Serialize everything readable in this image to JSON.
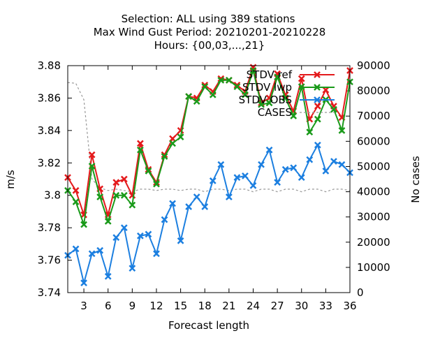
{
  "chart_data": {
    "type": "line",
    "title_lines": [
      "Selection: ALL using   389 stations",
      "Max Wind Gust   Period: 20210201-20210228",
      "Hours: {00,03,...,21}"
    ],
    "xlabel": "Forecast length",
    "ylabel": "m/s",
    "y2label": "No cases",
    "xlim": [
      1,
      36
    ],
    "ylim": [
      3.74,
      3.88
    ],
    "y2lim": [
      0,
      90000
    ],
    "xticks": [
      3,
      6,
      9,
      12,
      15,
      18,
      21,
      24,
      27,
      30,
      33,
      36
    ],
    "yticks": [
      3.74,
      3.76,
      3.78,
      3.8,
      3.82,
      3.84,
      3.86,
      3.88
    ],
    "ytick_labels": [
      "3.74",
      "3.76",
      "3.78",
      "3.8",
      "3.82",
      "3.84",
      "3.86",
      "3.88"
    ],
    "y2ticks": [
      0,
      10000,
      20000,
      30000,
      40000,
      50000,
      60000,
      70000,
      80000,
      90000
    ],
    "legend_position": "top-right",
    "x": [
      1,
      2,
      3,
      4,
      5,
      6,
      7,
      8,
      9,
      10,
      11,
      12,
      13,
      14,
      15,
      16,
      17,
      18,
      19,
      20,
      21,
      22,
      23,
      24,
      25,
      26,
      27,
      28,
      29,
      30,
      31,
      32,
      33,
      34,
      35,
      36
    ],
    "series": [
      {
        "name": "STDV ref",
        "axis": "y1",
        "color": "#e41a1c",
        "marker": "x",
        "values": [
          3.811,
          3.803,
          3.788,
          3.825,
          3.804,
          3.788,
          3.808,
          3.81,
          3.8,
          3.832,
          3.816,
          3.808,
          3.825,
          3.835,
          3.84,
          3.861,
          3.86,
          3.868,
          3.864,
          3.872,
          3.871,
          3.868,
          3.864,
          3.879,
          3.857,
          3.86,
          3.875,
          3.862,
          3.852,
          3.872,
          3.847,
          3.855,
          3.865,
          3.855,
          3.848,
          3.877
        ]
      },
      {
        "name": "STDV lwp",
        "axis": "y1",
        "color": "#1a9a1a",
        "marker": "x",
        "values": [
          3.803,
          3.796,
          3.782,
          3.818,
          3.799,
          3.784,
          3.8,
          3.8,
          3.794,
          3.828,
          3.815,
          3.807,
          3.824,
          3.832,
          3.836,
          3.861,
          3.858,
          3.867,
          3.862,
          3.871,
          3.871,
          3.867,
          3.862,
          3.877,
          3.856,
          3.857,
          3.873,
          3.86,
          3.849,
          3.867,
          3.839,
          3.847,
          3.859,
          3.853,
          3.84,
          3.87
        ]
      },
      {
        "name": "STDV OBS",
        "axis": "y1",
        "color": "#1c7fe0",
        "marker": "x",
        "values": [
          3.763,
          3.767,
          3.746,
          3.764,
          3.766,
          3.75,
          3.774,
          3.78,
          3.755,
          3.775,
          3.776,
          3.764,
          3.785,
          3.795,
          3.772,
          3.793,
          3.799,
          3.793,
          3.809,
          3.819,
          3.799,
          3.811,
          3.812,
          3.806,
          3.819,
          3.828,
          3.808,
          3.816,
          3.817,
          3.811,
          3.822,
          3.831,
          3.815,
          3.821,
          3.819,
          3.814
        ]
      },
      {
        "name": "CASES",
        "axis": "y2",
        "color": "#999999",
        "dash": true,
        "values": [
          83300,
          83000,
          76500,
          45000,
          41500,
          40500,
          41000,
          40500,
          40000,
          41000,
          41000,
          40500,
          41000,
          41000,
          40500,
          41000,
          41000,
          40000,
          41000,
          41000,
          40500,
          41000,
          41000,
          40000,
          41000,
          41000,
          40000,
          41000,
          41000,
          40000,
          41000,
          41000,
          40000,
          41000,
          41000,
          40500
        ]
      }
    ]
  }
}
